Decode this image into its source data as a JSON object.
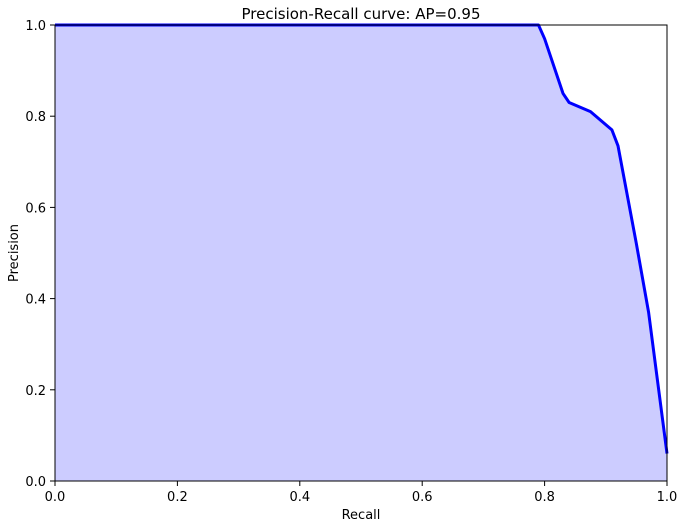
{
  "chart_data": {
    "type": "area",
    "title": "Precision-Recall curve: AP=0.95",
    "xlabel": "Recall",
    "ylabel": "Precision",
    "xlim": [
      0.0,
      1.0
    ],
    "ylim": [
      0.0,
      1.0
    ],
    "xticks": [
      "0.0",
      "0.2",
      "0.4",
      "0.6",
      "0.8",
      "1.0"
    ],
    "yticks": [
      "0.0",
      "0.2",
      "0.4",
      "0.6",
      "0.8",
      "1.0"
    ],
    "grid": false,
    "series": [
      {
        "line_color": "#0000ff",
        "fill_color": "#ccccff",
        "x": [
          0.0,
          0.79,
          0.8,
          0.83,
          0.84,
          0.875,
          0.91,
          0.92,
          0.95,
          0.97,
          1.0
        ],
        "y": [
          1.0,
          1.0,
          0.97,
          0.85,
          0.83,
          0.81,
          0.77,
          0.735,
          0.52,
          0.37,
          0.06
        ]
      }
    ]
  }
}
